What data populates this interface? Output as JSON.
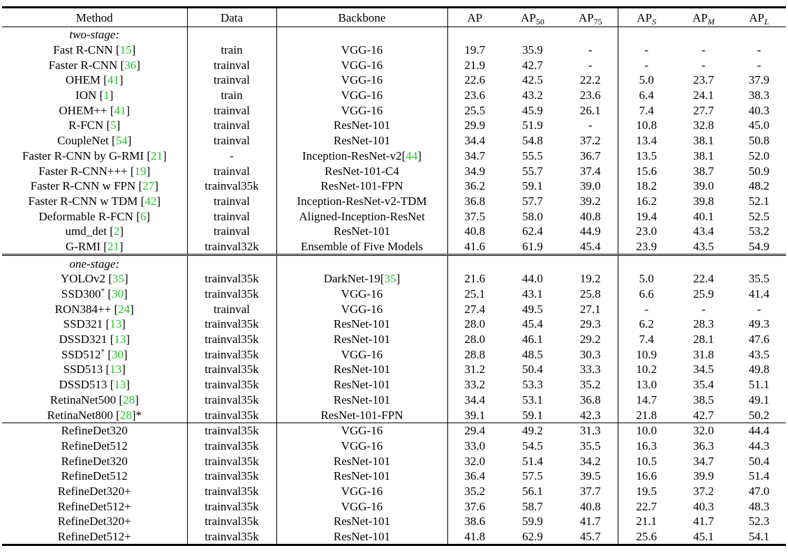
{
  "header": {
    "method": "Method",
    "data": "Data",
    "backbone": "Backbone",
    "ap": "AP",
    "ap50": {
      "base": "AP",
      "sub": "50"
    },
    "ap75": {
      "base": "AP",
      "sub": "75"
    },
    "aps": {
      "base": "AP",
      "sub": "S"
    },
    "apm": {
      "base": "AP",
      "sub": "M"
    },
    "apl": {
      "base": "AP",
      "sub": "L"
    }
  },
  "groups": [
    {
      "label": "two-stage:",
      "rows": [
        {
          "name": "Fast R-CNN",
          "cite": "15",
          "data": "train",
          "backbone": "VGG-16",
          "ap": "19.7",
          "ap50": "35.9",
          "ap75": "-",
          "aps": "-",
          "apm": "-",
          "apl": "-"
        },
        {
          "name": "Faster R-CNN",
          "cite": "36",
          "data": "trainval",
          "backbone": "VGG-16",
          "ap": "21.9",
          "ap50": "42.7",
          "ap75": "-",
          "aps": "-",
          "apm": "-",
          "apl": "-"
        },
        {
          "name": "OHEM",
          "cite": "41",
          "data": "trainval",
          "backbone": "VGG-16",
          "ap": "22.6",
          "ap50": "42.5",
          "ap75": "22.2",
          "aps": "5.0",
          "apm": "23.7",
          "apl": "37.9"
        },
        {
          "name": "ION",
          "cite": "1",
          "data": "train",
          "backbone": "VGG-16",
          "ap": "23.6",
          "ap50": "43.2",
          "ap75": "23.6",
          "aps": "6.4",
          "apm": "24.1",
          "apl": "38.3"
        },
        {
          "name": "OHEM++",
          "cite": "41",
          "data": "trainval",
          "backbone": "VGG-16",
          "ap": "25.5",
          "ap50": "45.9",
          "ap75": "26.1",
          "aps": "7.4",
          "apm": "27.7",
          "apl": "40.3"
        },
        {
          "name": "R-FCN",
          "cite": "5",
          "data": "trainval",
          "backbone": "ResNet-101",
          "ap": "29.9",
          "ap50": "51.9",
          "ap75": "-",
          "aps": "10.8",
          "apm": "32.8",
          "apl": "45.0"
        },
        {
          "name": "CoupleNet",
          "cite": "54",
          "data": "trainval",
          "backbone": "ResNet-101",
          "ap": "34.4",
          "ap50": "54.8",
          "ap75": "37.2",
          "aps": "13.4",
          "apm": "38.1",
          "apl": "50.8"
        },
        {
          "name": "Faster R-CNN by G-RMI",
          "cite": "21",
          "data": "-",
          "backbone": "Inception-ResNet-v2",
          "backbone_cite": "44",
          "ap": "34.7",
          "ap50": "55.5",
          "ap75": "36.7",
          "aps": "13.5",
          "apm": "38.1",
          "apl": "52.0"
        },
        {
          "name": "Faster R-CNN+++",
          "cite": "19",
          "data": "trainval",
          "backbone": "ResNet-101-C4",
          "ap": "34.9",
          "ap50": "55.7",
          "ap75": "37.4",
          "aps": "15.6",
          "apm": "38.7",
          "apl": "50.9"
        },
        {
          "name": "Faster R-CNN w FPN",
          "cite": "27",
          "data": "trainval35k",
          "backbone": "ResNet-101-FPN",
          "ap": "36.2",
          "ap50": "59.1",
          "ap75": "39.0",
          "aps": "18.2",
          "apm": "39.0",
          "apl": "48.2"
        },
        {
          "name": "Faster R-CNN w TDM",
          "cite": "42",
          "data": "trainval",
          "backbone": "Inception-ResNet-v2-TDM",
          "ap": "36.8",
          "ap50": "57.7",
          "ap75": "39.2",
          "aps": "16.2",
          "apm": "39.8",
          "apl": "52.1"
        },
        {
          "name": "Deformable R-FCN",
          "cite": "6",
          "data": "trainval",
          "backbone": "Aligned-Inception-ResNet",
          "ap": "37.5",
          "ap50": "58.0",
          "ap75": "40.8",
          "aps": "19.4",
          "apm": "40.1",
          "apl": "52.5"
        },
        {
          "name": "umd_det",
          "cite": "2",
          "data": "trainval",
          "backbone": "ResNet-101",
          "ap": "40.8",
          "ap50": "62.4",
          "ap75": "44.9",
          "aps": "23.0",
          "apm": "43.4",
          "apl": "53.2"
        },
        {
          "name": "G-RMI",
          "cite": "21",
          "data": "trainval32k",
          "backbone": "Ensemble of Five Models",
          "ap": "41.6",
          "ap50": "61.9",
          "ap75": "45.4",
          "aps": "23.9",
          "apm": "43.5",
          "apl": "54.9"
        }
      ]
    },
    {
      "label": "one-stage:",
      "rows": [
        {
          "name": "YOLOv2",
          "cite": "35",
          "data": "trainval35k",
          "backbone": "DarkNet-19",
          "backbone_cite": "35",
          "ap": "21.6",
          "ap50": "44.0",
          "ap75": "19.2",
          "aps": "5.0",
          "apm": "22.4",
          "apl": "35.5"
        },
        {
          "name": "SSD300",
          "mark": "*",
          "cite": "30",
          "data": "trainval35k",
          "backbone": "VGG-16",
          "ap": "25.1",
          "ap50": "43.1",
          "ap75": "25.8",
          "aps": "6.6",
          "apm": "25.9",
          "apl": "41.4"
        },
        {
          "name": "RON384++",
          "cite": "24",
          "data": "trainval",
          "backbone": "VGG-16",
          "ap": "27.4",
          "ap50": "49.5",
          "ap75": "27.1",
          "aps": "-",
          "apm": "-",
          "apl": "-"
        },
        {
          "name": "SSD321",
          "cite": "13",
          "data": "trainval35k",
          "backbone": "ResNet-101",
          "ap": "28.0",
          "ap50": "45.4",
          "ap75": "29.3",
          "aps": "6.2",
          "apm": "28.3",
          "apl": "49.3"
        },
        {
          "name": "DSSD321",
          "cite": "13",
          "data": "trainval35k",
          "backbone": "ResNet-101",
          "ap": "28.0",
          "ap50": "46.1",
          "ap75": "29.2",
          "aps": "7.4",
          "apm": "28.1",
          "apl": "47.6"
        },
        {
          "name": "SSD512",
          "mark": "*",
          "cite": "30",
          "data": "trainval35k",
          "backbone": "VGG-16",
          "ap": "28.8",
          "ap50": "48.5",
          "ap75": "30.3",
          "aps": "10.9",
          "apm": "31.8",
          "apl": "43.5"
        },
        {
          "name": "SSD513",
          "cite": "13",
          "data": "trainval35k",
          "backbone": "ResNet-101",
          "ap": "31.2",
          "ap50": "50.4",
          "ap75": "33.3",
          "aps": "10.2",
          "apm": "34.5",
          "apl": "49.8"
        },
        {
          "name": "DSSD513",
          "cite": "13",
          "data": "trainval35k",
          "backbone": "ResNet-101",
          "ap": "33.2",
          "ap50": "53.3",
          "ap75": "35.2",
          "aps": "13.0",
          "apm": "35.4",
          "apl": "51.1"
        },
        {
          "name": "RetinaNet500",
          "cite": "28",
          "data": "trainval35k",
          "backbone": "ResNet-101",
          "ap": "34.4",
          "ap50": "53.1",
          "ap75": "36.8",
          "aps": "14.7",
          "apm": "38.5",
          "apl": "49.1"
        },
        {
          "name": "RetinaNet800",
          "cite": "28",
          "post": "*",
          "data": "trainval35k",
          "backbone": "ResNet-101-FPN",
          "ap": "39.1",
          "ap50": "59.1",
          "ap75": "42.3",
          "aps": "21.8",
          "apm": "42.7",
          "apl": "50.2"
        }
      ]
    },
    {
      "label": "",
      "rows": [
        {
          "name": "RefineDet320",
          "data": "trainval35k",
          "backbone": "VGG-16",
          "ap": "29.4",
          "ap50": "49.2",
          "ap75": "31.3",
          "aps": "10.0",
          "apm": "32.0",
          "apl": "44.4"
        },
        {
          "name": "RefineDet512",
          "data": "trainval35k",
          "backbone": "VGG-16",
          "ap": "33.0",
          "ap50": "54.5",
          "ap75": "35.5",
          "aps": "16.3",
          "apm": "36.3",
          "apl": "44.3"
        },
        {
          "name": "RefineDet320",
          "data": "trainval35k",
          "backbone": "ResNet-101",
          "ap": "32.0",
          "ap50": "51.4",
          "ap75": "34.2",
          "aps": "10.5",
          "apm": "34.7",
          "apl": "50.4"
        },
        {
          "name": "RefineDet512",
          "data": "trainval35k",
          "backbone": "ResNet-101",
          "ap": "36.4",
          "ap50": "57.5",
          "ap75": "39.5",
          "aps": "16.6",
          "apm": "39.9",
          "apl": "51.4"
        },
        {
          "name": "RefineDet320+",
          "data": "trainval35k",
          "backbone": "VGG-16",
          "ap": "35.2",
          "ap50": "56.1",
          "ap75": "37.7",
          "aps": "19.5",
          "apm": "37.2",
          "apl": "47.0"
        },
        {
          "name": "RefineDet512+",
          "data": "trainval35k",
          "backbone": "VGG-16",
          "ap": "37.6",
          "ap50": "58.7",
          "ap75": "40.8",
          "aps": "22.7",
          "apm": "40.3",
          "apl": "48.3"
        },
        {
          "name": "RefineDet320+",
          "data": "trainval35k",
          "backbone": "ResNet-101",
          "ap": "38.6",
          "ap50": "59.9",
          "ap75": "41.7",
          "aps": "21.1",
          "apm": "41.7",
          "apl": "52.3"
        },
        {
          "name": "RefineDet512+",
          "data": "trainval35k",
          "backbone": "ResNet-101",
          "ap": "41.8",
          "ap50": "62.9",
          "ap75": "45.7",
          "aps": "25.6",
          "apm": "45.1",
          "apl": "54.1",
          "bold": [
            "ap",
            "ap50",
            "ap75",
            "aps",
            "apm",
            "apl"
          ]
        }
      ]
    }
  ],
  "colors": {
    "citation": "#22c42a",
    "text": "#000000",
    "background": "#ffffff"
  }
}
